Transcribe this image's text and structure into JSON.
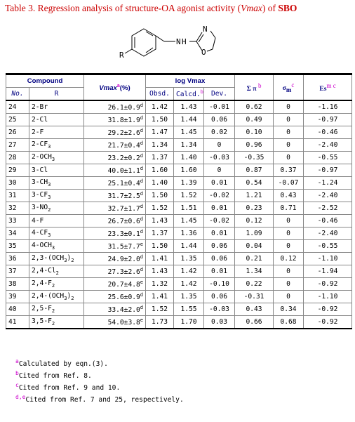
{
  "caption": {
    "prefix": "Table 3. Regression analysis of structure-OA agonist activity (",
    "vmax": "Vmax",
    "middle": ") of ",
    "compound": "SBO"
  },
  "structure": {
    "r_label": "R",
    "n1": "N",
    "h": "H",
    "n2": "N",
    "o": "O"
  },
  "headers": {
    "compound": "Compound",
    "vmax": "Vmax",
    "vmax_sup": "a",
    "vmax_unit": "(%)",
    "logv": "log Vmax",
    "pi": "Σ π",
    "pi_sup": "b",
    "sigma": "σ",
    "sigma_sub": "m",
    "sigma_sup": "c",
    "es": "Es",
    "es_sup": "m c",
    "no": "No.",
    "r": "R",
    "obsd": "Obsd.",
    "calcd": "Calcd.",
    "calcd_sup": "b",
    "dev": "Dev."
  },
  "rows": [
    {
      "no": "24",
      "r": "2-Br",
      "rsub": "",
      "rtail": "",
      "vmax": "26.1±0.9",
      "vs": "d",
      "obsd": "1.42",
      "calcd": "1.43",
      "dev": "-0.01",
      "pi": "0.62",
      "sigma": "0",
      "es": "-1.16"
    },
    {
      "no": "25",
      "r": "2-Cl",
      "rsub": "",
      "rtail": "",
      "vmax": "31.8±1.9",
      "vs": "d",
      "obsd": "1.50",
      "calcd": "1.44",
      "dev": "0.06",
      "pi": "0.49",
      "sigma": "0",
      "es": "-0.97"
    },
    {
      "no": "26",
      "r": "2-F",
      "rsub": "",
      "rtail": "",
      "vmax": "29.2±2.6",
      "vs": "d",
      "obsd": "1.47",
      "calcd": "1.45",
      "dev": "0.02",
      "pi": "0.10",
      "sigma": "0",
      "es": "-0.46"
    },
    {
      "no": "27",
      "r": "2-CF",
      "rsub": "3",
      "rtail": "",
      "vmax": "21.7±0.4",
      "vs": "d",
      "obsd": "1.34",
      "calcd": "1.34",
      "dev": "0",
      "pi": "0.96",
      "sigma": "0",
      "es": "-2.40"
    },
    {
      "no": "28",
      "r": "2-OCH",
      "rsub": "3",
      "rtail": "",
      "vmax": "23.2±0.2",
      "vs": "d",
      "obsd": "1.37",
      "calcd": "1.40",
      "dev": "-0.03",
      "pi": "-0.35",
      "sigma": "0",
      "es": "-0.55"
    },
    {
      "no": "29",
      "r": "3-Cl",
      "rsub": "",
      "rtail": "",
      "vmax": "40.0±1.1",
      "vs": "d",
      "obsd": "1.60",
      "calcd": "1.60",
      "dev": "0",
      "pi": "0.87",
      "sigma": "0.37",
      "es": "-0.97"
    },
    {
      "no": "30",
      "r": "3-CH",
      "rsub": "3",
      "rtail": "",
      "vmax": "25.1±0.4",
      "vs": "d",
      "obsd": "1.40",
      "calcd": "1.39",
      "dev": "0.01",
      "pi": "0.54",
      "sigma": "-0.07",
      "es": "-1.24"
    },
    {
      "no": "31",
      "r": "3-CF",
      "rsub": "3",
      "rtail": "",
      "vmax": "31.7±2.5",
      "vs": "d",
      "obsd": "1.50",
      "calcd": "1.52",
      "dev": "-0.02",
      "pi": "1.21",
      "sigma": "0.43",
      "es": "-2.40"
    },
    {
      "no": "32",
      "r": "3-NO",
      "rsub": "2",
      "rtail": "",
      "vmax": "32.7±1.7",
      "vs": "d",
      "obsd": "1.52",
      "calcd": "1.51",
      "dev": "0.01",
      "pi": "0.23",
      "sigma": "0.71",
      "es": "-2.52"
    },
    {
      "no": "33",
      "r": "4-F",
      "rsub": "",
      "rtail": "",
      "vmax": "26.7±0.6",
      "vs": "d",
      "obsd": "1.43",
      "calcd": "1.45",
      "dev": "-0.02",
      "pi": "0.12",
      "sigma": "0",
      "es": "-0.46"
    },
    {
      "no": "34",
      "r": "4-CF",
      "rsub": "3",
      "rtail": "",
      "vmax": "23.3±0.1",
      "vs": "d",
      "obsd": "1.37",
      "calcd": "1.36",
      "dev": "0.01",
      "pi": "1.09",
      "sigma": "0",
      "es": "-2.40"
    },
    {
      "no": "35",
      "r": "4-OCH",
      "rsub": "3",
      "rtail": "",
      "vmax": "31.5±7.7",
      "vs": "e",
      "obsd": "1.50",
      "calcd": "1.44",
      "dev": "0.06",
      "pi": "0.04",
      "sigma": "0",
      "es": "-0.55"
    },
    {
      "no": "36",
      "r": "2,3-(OCH",
      "rsub": "3",
      "rtail": ")",
      "rsub2": "2",
      "vmax": "24.9±2.0",
      "vs": "d",
      "obsd": "1.41",
      "calcd": "1.35",
      "dev": "0.06",
      "pi": "0.21",
      "sigma": "0.12",
      "es": "-1.10"
    },
    {
      "no": "37",
      "r": "2,4-Cl",
      "rsub": "2",
      "rtail": "",
      "vmax": "27.3±2.6",
      "vs": "d",
      "obsd": "1.43",
      "calcd": "1.42",
      "dev": "0.01",
      "pi": "1.34",
      "sigma": "0",
      "es": "-1.94"
    },
    {
      "no": "38",
      "r": "2,4-F",
      "rsub": "2",
      "rtail": "",
      "vmax": "20.7±4.8",
      "vs": "e",
      "obsd": "1.32",
      "calcd": "1.42",
      "dev": "-0.10",
      "pi": "0.22",
      "sigma": "0",
      "es": "-0.92"
    },
    {
      "no": "39",
      "r": "2,4-(OCH",
      "rsub": "3",
      "rtail": ")",
      "rsub2": "2",
      "vmax": "25.6±0.9",
      "vs": "d",
      "obsd": "1.41",
      "calcd": "1.35",
      "dev": "0.06",
      "pi": "-0.31",
      "sigma": "0",
      "es": "-1.10"
    },
    {
      "no": "40",
      "r": "2,5-F",
      "rsub": "2",
      "rtail": "",
      "vmax": "33.4±2.0",
      "vs": "d",
      "obsd": "1.52",
      "calcd": "1.55",
      "dev": "-0.03",
      "pi": "0.43",
      "sigma": "0.34",
      "es": "-0.92"
    },
    {
      "no": "41",
      "r": "3,5-F",
      "rsub": "2",
      "rtail": "",
      "vmax": "54.0±3.8",
      "vs": "e",
      "obsd": "1.73",
      "calcd": "1.70",
      "dev": "0.03",
      "pi": "0.66",
      "sigma": "0.68",
      "es": "-0.92"
    }
  ],
  "footnotes": [
    {
      "mark": "a",
      "text": "Calculated by eqn.(3)."
    },
    {
      "mark": "b",
      "text": "Cited from Ref. 8."
    },
    {
      "mark": "c",
      "text": "Cited from Ref. 9 and 10."
    },
    {
      "mark": "d,e",
      "text": "Cited from Ref. 7 and 25, respectively."
    }
  ]
}
